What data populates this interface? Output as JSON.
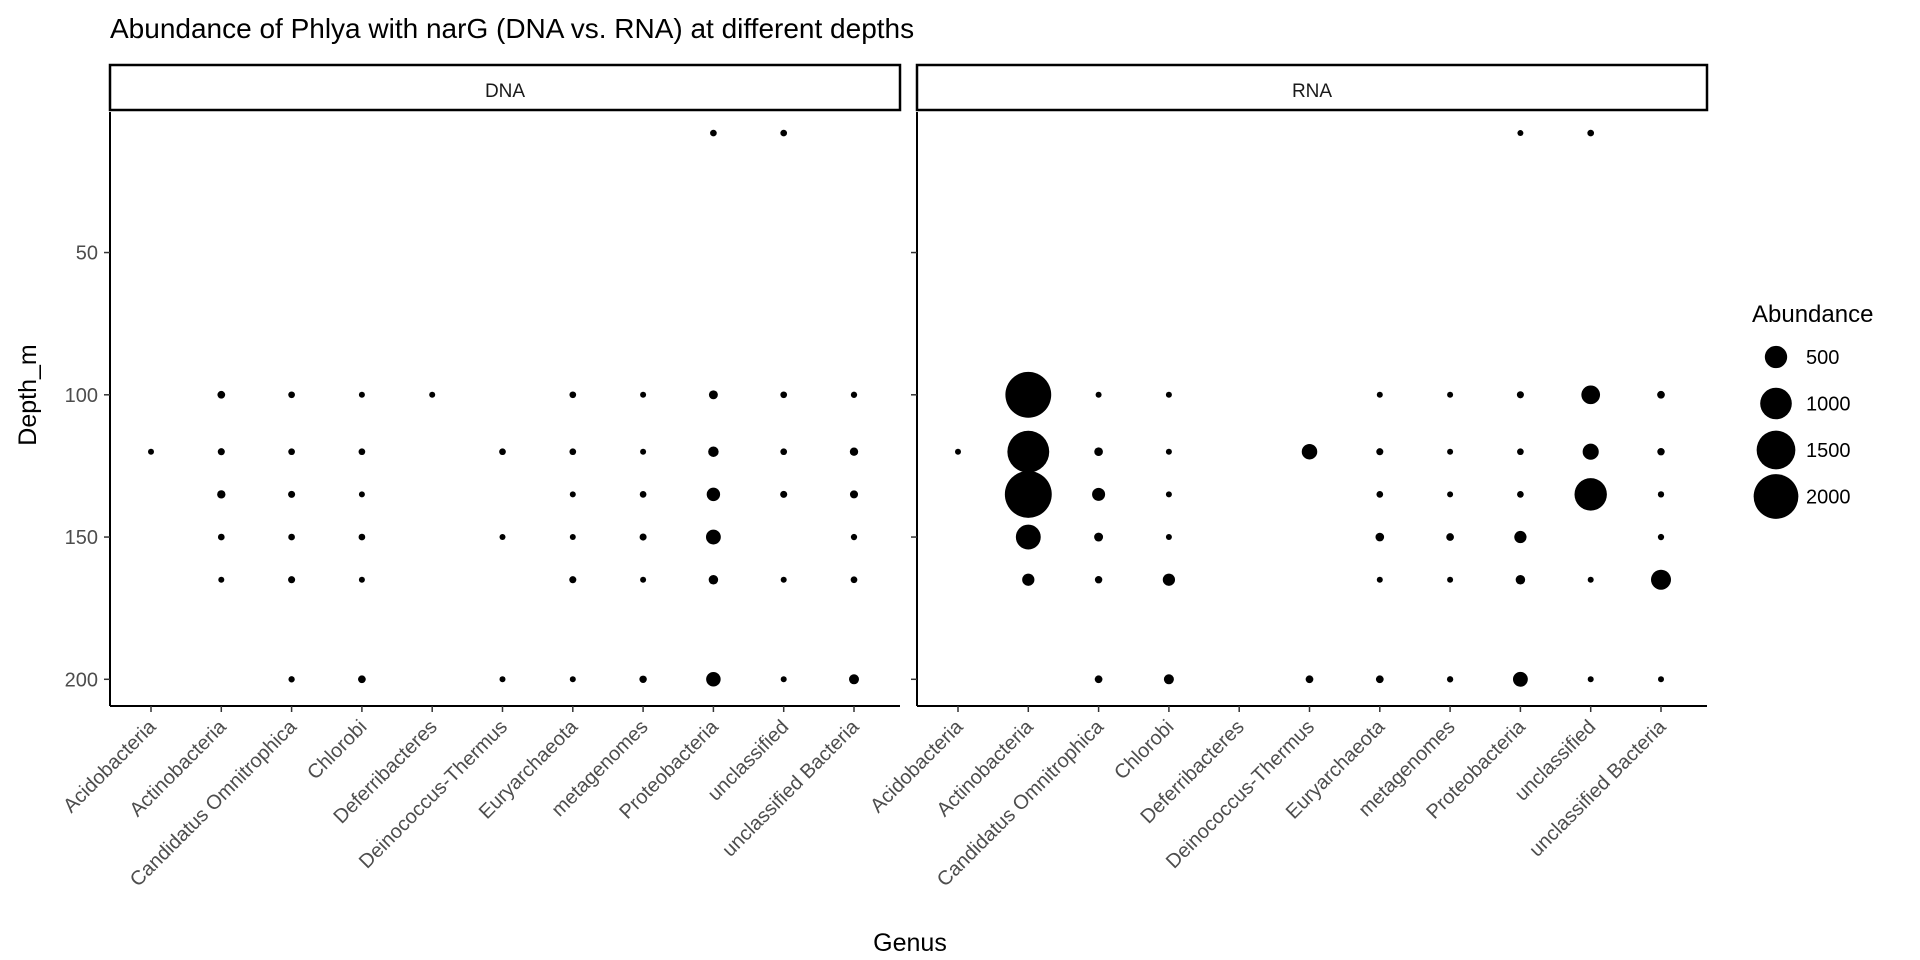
{
  "chart_data": {
    "type": "scatter",
    "title": "Abundance of Phlya with narG (DNA vs. RNA) at different depths",
    "xlabel": "Genus",
    "ylabel": "Depth_m",
    "categories": [
      "Acidobacteria",
      "Actinobacteria",
      "Candidatus Omnitrophica",
      "Chlorobi",
      "Deferribacteres",
      "Deinococcus-Thermus",
      "Euryarchaeota",
      "metagenomes",
      "Proteobacteria",
      "unclassified",
      "unclassified Bacteria"
    ],
    "y_reversed": true,
    "ylim": [
      200,
      0
    ],
    "yticks": [
      50,
      100,
      150,
      200
    ],
    "size_legend": {
      "title": "Abundance",
      "entries": [
        {
          "label": "500",
          "value": 500
        },
        {
          "label": "1000",
          "value": 1000
        },
        {
          "label": "1500",
          "value": 1500
        },
        {
          "label": "2000",
          "value": 2000
        }
      ]
    },
    "panels": [
      {
        "name": "DNA",
        "points": [
          {
            "genus": "Acidobacteria",
            "depth": 120,
            "abundance": 15
          },
          {
            "genus": "Actinobacteria",
            "depth": 100,
            "abundance": 60
          },
          {
            "genus": "Actinobacteria",
            "depth": 120,
            "abundance": 50
          },
          {
            "genus": "Actinobacteria",
            "depth": 135,
            "abundance": 70
          },
          {
            "genus": "Actinobacteria",
            "depth": 150,
            "abundance": 45
          },
          {
            "genus": "Actinobacteria",
            "depth": 165,
            "abundance": 35
          },
          {
            "genus": "Candidatus Omnitrophica",
            "depth": 100,
            "abundance": 45
          },
          {
            "genus": "Candidatus Omnitrophica",
            "depth": 120,
            "abundance": 45
          },
          {
            "genus": "Candidatus Omnitrophica",
            "depth": 135,
            "abundance": 50
          },
          {
            "genus": "Candidatus Omnitrophica",
            "depth": 150,
            "abundance": 45
          },
          {
            "genus": "Candidatus Omnitrophica",
            "depth": 165,
            "abundance": 50
          },
          {
            "genus": "Candidatus Omnitrophica",
            "depth": 200,
            "abundance": 40
          },
          {
            "genus": "Chlorobi",
            "depth": 100,
            "abundance": 30
          },
          {
            "genus": "Chlorobi",
            "depth": 120,
            "abundance": 45
          },
          {
            "genus": "Chlorobi",
            "depth": 135,
            "abundance": 25
          },
          {
            "genus": "Chlorobi",
            "depth": 150,
            "abundance": 45
          },
          {
            "genus": "Chlorobi",
            "depth": 165,
            "abundance": 25
          },
          {
            "genus": "Chlorobi",
            "depth": 200,
            "abundance": 60
          },
          {
            "genus": "Deferribacteres",
            "depth": 100,
            "abundance": 20
          },
          {
            "genus": "Deinococcus-Thermus",
            "depth": 120,
            "abundance": 45
          },
          {
            "genus": "Deinococcus-Thermus",
            "depth": 150,
            "abundance": 20
          },
          {
            "genus": "Deinococcus-Thermus",
            "depth": 200,
            "abundance": 30
          },
          {
            "genus": "Euryarchaeota",
            "depth": 100,
            "abundance": 45
          },
          {
            "genus": "Euryarchaeota",
            "depth": 120,
            "abundance": 45
          },
          {
            "genus": "Euryarchaeota",
            "depth": 135,
            "abundance": 20
          },
          {
            "genus": "Euryarchaeota",
            "depth": 150,
            "abundance": 20
          },
          {
            "genus": "Euryarchaeota",
            "depth": 165,
            "abundance": 50
          },
          {
            "genus": "Euryarchaeota",
            "depth": 200,
            "abundance": 35
          },
          {
            "genus": "metagenomes",
            "depth": 100,
            "abundance": 25
          },
          {
            "genus": "metagenomes",
            "depth": 120,
            "abundance": 25
          },
          {
            "genus": "metagenomes",
            "depth": 135,
            "abundance": 45
          },
          {
            "genus": "metagenomes",
            "depth": 150,
            "abundance": 50
          },
          {
            "genus": "metagenomes",
            "depth": 165,
            "abundance": 25
          },
          {
            "genus": "metagenomes",
            "depth": 200,
            "abundance": 55
          },
          {
            "genus": "Proteobacteria",
            "depth": 8,
            "abundance": 45
          },
          {
            "genus": "Proteobacteria",
            "depth": 100,
            "abundance": 80
          },
          {
            "genus": "Proteobacteria",
            "depth": 120,
            "abundance": 110
          },
          {
            "genus": "Proteobacteria",
            "depth": 135,
            "abundance": 180
          },
          {
            "genus": "Proteobacteria",
            "depth": 150,
            "abundance": 220
          },
          {
            "genus": "Proteobacteria",
            "depth": 165,
            "abundance": 90
          },
          {
            "genus": "Proteobacteria",
            "depth": 200,
            "abundance": 210
          },
          {
            "genus": "unclassified",
            "depth": 8,
            "abundance": 45
          },
          {
            "genus": "unclassified",
            "depth": 100,
            "abundance": 45
          },
          {
            "genus": "unclassified",
            "depth": 120,
            "abundance": 45
          },
          {
            "genus": "unclassified",
            "depth": 135,
            "abundance": 50
          },
          {
            "genus": "unclassified",
            "depth": 165,
            "abundance": 20
          },
          {
            "genus": "unclassified",
            "depth": 200,
            "abundance": 30
          },
          {
            "genus": "unclassified Bacteria",
            "depth": 100,
            "abundance": 40
          },
          {
            "genus": "unclassified Bacteria",
            "depth": 120,
            "abundance": 70
          },
          {
            "genus": "unclassified Bacteria",
            "depth": 135,
            "abundance": 65
          },
          {
            "genus": "unclassified Bacteria",
            "depth": 150,
            "abundance": 40
          },
          {
            "genus": "unclassified Bacteria",
            "depth": 165,
            "abundance": 45
          },
          {
            "genus": "unclassified Bacteria",
            "depth": 200,
            "abundance": 100
          }
        ]
      },
      {
        "name": "RNA",
        "points": [
          {
            "genus": "Acidobacteria",
            "depth": 120,
            "abundance": 15
          },
          {
            "genus": "Actinobacteria",
            "depth": 100,
            "abundance": 2100
          },
          {
            "genus": "Actinobacteria",
            "depth": 120,
            "abundance": 1750
          },
          {
            "genus": "Actinobacteria",
            "depth": 135,
            "abundance": 2200
          },
          {
            "genus": "Actinobacteria",
            "depth": 150,
            "abundance": 620
          },
          {
            "genus": "Actinobacteria",
            "depth": 165,
            "abundance": 150
          },
          {
            "genus": "Candidatus Omnitrophica",
            "depth": 100,
            "abundance": 20
          },
          {
            "genus": "Candidatus Omnitrophica",
            "depth": 120,
            "abundance": 75
          },
          {
            "genus": "Candidatus Omnitrophica",
            "depth": 135,
            "abundance": 170
          },
          {
            "genus": "Candidatus Omnitrophica",
            "depth": 150,
            "abundance": 80
          },
          {
            "genus": "Candidatus Omnitrophica",
            "depth": 165,
            "abundance": 55
          },
          {
            "genus": "Candidatus Omnitrophica",
            "depth": 200,
            "abundance": 60
          },
          {
            "genus": "Chlorobi",
            "depth": 100,
            "abundance": 20
          },
          {
            "genus": "Chlorobi",
            "depth": 120,
            "abundance": 30
          },
          {
            "genus": "Chlorobi",
            "depth": 135,
            "abundance": 15
          },
          {
            "genus": "Chlorobi",
            "depth": 150,
            "abundance": 20
          },
          {
            "genus": "Chlorobi",
            "depth": 165,
            "abundance": 150
          },
          {
            "genus": "Chlorobi",
            "depth": 200,
            "abundance": 100
          },
          {
            "genus": "Deinococcus-Thermus",
            "depth": 120,
            "abundance": 240
          },
          {
            "genus": "Deinococcus-Thermus",
            "depth": 200,
            "abundance": 60
          },
          {
            "genus": "Euryarchaeota",
            "depth": 100,
            "abundance": 30
          },
          {
            "genus": "Euryarchaeota",
            "depth": 120,
            "abundance": 50
          },
          {
            "genus": "Euryarchaeota",
            "depth": 135,
            "abundance": 45
          },
          {
            "genus": "Euryarchaeota",
            "depth": 150,
            "abundance": 75
          },
          {
            "genus": "Euryarchaeota",
            "depth": 165,
            "abundance": 30
          },
          {
            "genus": "Euryarchaeota",
            "depth": 200,
            "abundance": 60
          },
          {
            "genus": "metagenomes",
            "depth": 100,
            "abundance": 30
          },
          {
            "genus": "metagenomes",
            "depth": 120,
            "abundance": 30
          },
          {
            "genus": "metagenomes",
            "depth": 135,
            "abundance": 30
          },
          {
            "genus": "metagenomes",
            "depth": 150,
            "abundance": 60
          },
          {
            "genus": "metagenomes",
            "depth": 165,
            "abundance": 25
          },
          {
            "genus": "metagenomes",
            "depth": 200,
            "abundance": 40
          },
          {
            "genus": "Proteobacteria",
            "depth": 8,
            "abundance": 25
          },
          {
            "genus": "Proteobacteria",
            "depth": 100,
            "abundance": 50
          },
          {
            "genus": "Proteobacteria",
            "depth": 120,
            "abundance": 45
          },
          {
            "genus": "Proteobacteria",
            "depth": 135,
            "abundance": 45
          },
          {
            "genus": "Proteobacteria",
            "depth": 150,
            "abundance": 150
          },
          {
            "genus": "Proteobacteria",
            "depth": 165,
            "abundance": 90
          },
          {
            "genus": "Proteobacteria",
            "depth": 200,
            "abundance": 220
          },
          {
            "genus": "unclassified",
            "depth": 8,
            "abundance": 45
          },
          {
            "genus": "unclassified",
            "depth": 100,
            "abundance": 350
          },
          {
            "genus": "unclassified",
            "depth": 120,
            "abundance": 260
          },
          {
            "genus": "unclassified",
            "depth": 135,
            "abundance": 1050
          },
          {
            "genus": "unclassified",
            "depth": 165,
            "abundance": 25
          },
          {
            "genus": "unclassified",
            "depth": 200,
            "abundance": 30
          },
          {
            "genus": "unclassified Bacteria",
            "depth": 100,
            "abundance": 60
          },
          {
            "genus": "unclassified Bacteria",
            "depth": 120,
            "abundance": 55
          },
          {
            "genus": "unclassified Bacteria",
            "depth": 135,
            "abundance": 40
          },
          {
            "genus": "unclassified Bacteria",
            "depth": 150,
            "abundance": 40
          },
          {
            "genus": "unclassified Bacteria",
            "depth": 165,
            "abundance": 400
          },
          {
            "genus": "unclassified Bacteria",
            "depth": 200,
            "abundance": 30
          }
        ]
      }
    ]
  }
}
